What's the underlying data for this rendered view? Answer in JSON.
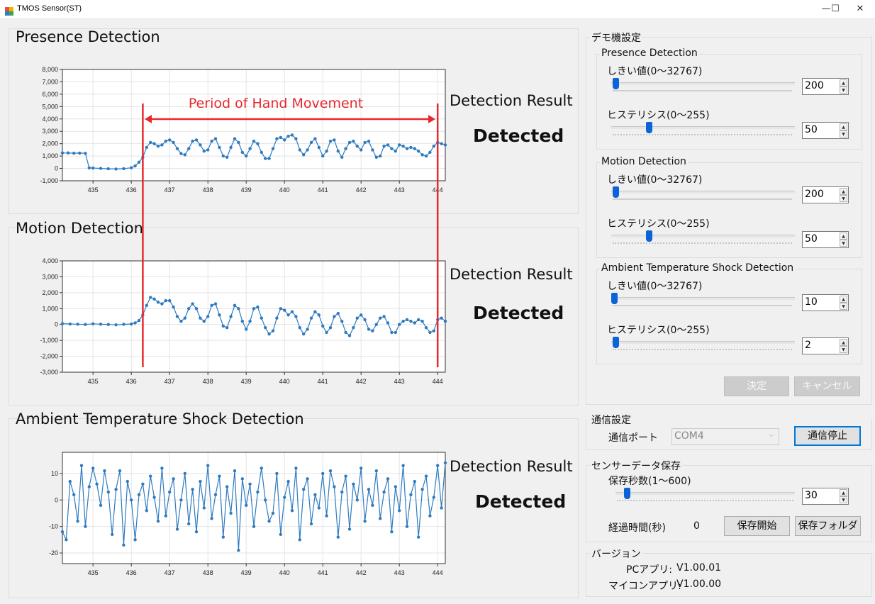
{
  "window": {
    "title": "TMOS Sensor(ST)",
    "minimize": "—",
    "maximize": "☐",
    "close": "✕"
  },
  "charts_ui": {
    "presence": {
      "title": "Presence Detection",
      "result_label": "Detection Result",
      "result_value": "Detected"
    },
    "motion": {
      "title": "Motion Detection",
      "result_label": "Detection Result",
      "result_value": "Detected"
    },
    "ambient": {
      "title": "Ambient Temperature Shock Detection",
      "result_label": "Detection Result",
      "result_value": "Detected"
    },
    "annotation": {
      "text": "Period of Hand Movement",
      "color": "#e8282d",
      "start_x": 436.3,
      "end_x": 444.0
    }
  },
  "chart_data": [
    {
      "type": "line",
      "title": "Presence Detection",
      "xlim": [
        434.2,
        444.2
      ],
      "ylim": [
        -1000,
        8000
      ],
      "x_ticks": [
        435,
        436,
        437,
        438,
        439,
        440,
        441,
        442,
        443,
        444
      ],
      "y_ticks": [
        -1000,
        0,
        1000,
        2000,
        3000,
        4000,
        5000,
        6000,
        7000,
        8000
      ],
      "y_tick_labels": [
        "-1,000",
        "0",
        "1,000",
        "2,000",
        "3,000",
        "4,000",
        "5,000",
        "6,000",
        "7,000",
        "8,000"
      ],
      "series_color": "#2e7bbf",
      "x": [
        434.2,
        434.35,
        434.5,
        434.65,
        434.8,
        434.9,
        435.0,
        435.2,
        435.4,
        435.6,
        435.8,
        436.0,
        436.1,
        436.2,
        436.3,
        436.4,
        436.5,
        436.6,
        436.7,
        436.8,
        436.9,
        437.0,
        437.1,
        437.2,
        437.3,
        437.4,
        437.5,
        437.6,
        437.7,
        437.8,
        437.9,
        438.0,
        438.1,
        438.2,
        438.3,
        438.4,
        438.5,
        438.6,
        438.7,
        438.8,
        438.9,
        439.0,
        439.1,
        439.2,
        439.3,
        439.4,
        439.5,
        439.6,
        439.7,
        439.8,
        439.9,
        440.0,
        440.1,
        440.2,
        440.3,
        440.4,
        440.5,
        440.6,
        440.7,
        440.8,
        440.9,
        441.0,
        441.1,
        441.2,
        441.3,
        441.4,
        441.5,
        441.6,
        441.7,
        441.8,
        441.9,
        442.0,
        442.1,
        442.2,
        442.3,
        442.4,
        442.5,
        442.6,
        442.7,
        442.8,
        442.9,
        443.0,
        443.1,
        443.2,
        443.3,
        443.4,
        443.5,
        443.6,
        443.7,
        443.8,
        443.9,
        444.0,
        444.1,
        444.2
      ],
      "y": [
        1250,
        1250,
        1230,
        1240,
        1220,
        40,
        30,
        0,
        -30,
        -50,
        -20,
        50,
        200,
        500,
        900,
        1700,
        2100,
        2000,
        1800,
        1900,
        2200,
        2300,
        2100,
        1600,
        1200,
        1100,
        1600,
        2200,
        2300,
        1900,
        1400,
        1500,
        2200,
        2400,
        1700,
        1000,
        900,
        1700,
        2400,
        2100,
        1300,
        1000,
        1600,
        2200,
        2000,
        1300,
        800,
        800,
        1600,
        2400,
        2500,
        2300,
        2600,
        2700,
        2400,
        1500,
        1100,
        1500,
        2100,
        2400,
        1700,
        1000,
        1400,
        2200,
        2300,
        1400,
        900,
        1600,
        2100,
        2200,
        1800,
        1500,
        2100,
        2200,
        1500,
        900,
        1000,
        1800,
        1900,
        1600,
        1400,
        1900,
        1800,
        1600,
        1700,
        1600,
        1400,
        1100,
        1000,
        1300,
        1800,
        2100,
        2000,
        1900
      ]
    },
    {
      "type": "line",
      "title": "Motion Detection",
      "xlim": [
        434.2,
        444.2
      ],
      "ylim": [
        -3000,
        4000
      ],
      "x_ticks": [
        435,
        436,
        437,
        438,
        439,
        440,
        441,
        442,
        443,
        444
      ],
      "y_ticks": [
        -3000,
        -2000,
        -1000,
        0,
        1000,
        2000,
        3000,
        4000
      ],
      "y_tick_labels": [
        "-3,000",
        "-2,000",
        "-1,000",
        "0",
        "1,000",
        "2,000",
        "3,000",
        "4,000"
      ],
      "series_color": "#2e7bbf",
      "x": [
        434.2,
        434.4,
        434.6,
        434.8,
        435.0,
        435.2,
        435.4,
        435.6,
        435.8,
        436.0,
        436.1,
        436.2,
        436.3,
        436.4,
        436.5,
        436.6,
        436.7,
        436.8,
        436.9,
        437.0,
        437.1,
        437.2,
        437.3,
        437.4,
        437.5,
        437.6,
        437.7,
        437.8,
        437.9,
        438.0,
        438.1,
        438.2,
        438.3,
        438.4,
        438.5,
        438.6,
        438.7,
        438.8,
        438.9,
        439.0,
        439.1,
        439.2,
        439.3,
        439.4,
        439.5,
        439.6,
        439.7,
        439.8,
        439.9,
        440.0,
        440.1,
        440.2,
        440.3,
        440.4,
        440.5,
        440.6,
        440.7,
        440.8,
        440.9,
        441.0,
        441.1,
        441.2,
        441.3,
        441.4,
        441.5,
        441.6,
        441.7,
        441.8,
        441.9,
        442.0,
        442.1,
        442.2,
        442.3,
        442.4,
        442.5,
        442.6,
        442.7,
        442.8,
        442.9,
        443.0,
        443.1,
        443.2,
        443.3,
        443.4,
        443.5,
        443.6,
        443.7,
        443.8,
        443.9,
        444.0,
        444.1,
        444.2
      ],
      "y": [
        50,
        30,
        20,
        0,
        40,
        20,
        0,
        -20,
        10,
        30,
        100,
        250,
        600,
        1200,
        1700,
        1600,
        1400,
        1300,
        1500,
        1500,
        1100,
        500,
        200,
        400,
        1000,
        1300,
        1000,
        400,
        200,
        500,
        1200,
        1300,
        600,
        -100,
        -200,
        500,
        1200,
        1000,
        200,
        -300,
        200,
        1000,
        1100,
        400,
        -200,
        -600,
        -400,
        400,
        1000,
        900,
        600,
        800,
        500,
        -200,
        -600,
        -300,
        400,
        800,
        600,
        -100,
        -500,
        -200,
        500,
        700,
        200,
        -500,
        -700,
        -200,
        400,
        600,
        300,
        -300,
        -400,
        0,
        400,
        500,
        100,
        -500,
        -500,
        0,
        200,
        300,
        200,
        100,
        300,
        200,
        -200,
        -500,
        -400,
        300,
        400,
        200
      ]
    },
    {
      "type": "line",
      "title": "Ambient Temperature Shock Detection",
      "xlim": [
        434.2,
        444.2
      ],
      "ylim": [
        -24,
        18
      ],
      "x_ticks": [
        435,
        436,
        437,
        438,
        439,
        440,
        441,
        442,
        443,
        444
      ],
      "y_ticks": [
        -20,
        -10,
        0,
        10
      ],
      "y_tick_labels": [
        "-20",
        "-10",
        "0",
        "10"
      ],
      "series_color": "#2e7bbf",
      "x": [
        434.2,
        434.3,
        434.4,
        434.5,
        434.6,
        434.7,
        434.8,
        434.9,
        435.0,
        435.1,
        435.2,
        435.3,
        435.4,
        435.5,
        435.6,
        435.7,
        435.8,
        435.9,
        436.0,
        436.1,
        436.2,
        436.3,
        436.4,
        436.5,
        436.6,
        436.7,
        436.8,
        436.9,
        437.0,
        437.1,
        437.2,
        437.3,
        437.4,
        437.5,
        437.6,
        437.7,
        437.8,
        437.9,
        438.0,
        438.1,
        438.2,
        438.3,
        438.4,
        438.5,
        438.6,
        438.7,
        438.8,
        438.9,
        439.0,
        439.1,
        439.2,
        439.3,
        439.4,
        439.5,
        439.6,
        439.7,
        439.8,
        439.9,
        440.0,
        440.1,
        440.2,
        440.3,
        440.4,
        440.5,
        440.6,
        440.7,
        440.8,
        440.9,
        441.0,
        441.1,
        441.2,
        441.3,
        441.4,
        441.5,
        441.6,
        441.7,
        441.8,
        441.9,
        442.0,
        442.1,
        442.2,
        442.3,
        442.4,
        442.5,
        442.6,
        442.7,
        442.8,
        442.9,
        443.0,
        443.1,
        443.2,
        443.3,
        443.4,
        443.5,
        443.6,
        443.7,
        443.8,
        443.9,
        444.0,
        444.1,
        444.2
      ],
      "y": [
        -12,
        -15,
        7,
        2,
        -8,
        13,
        -10,
        5,
        12,
        6,
        -2,
        11,
        3,
        -13,
        4,
        11,
        -17,
        7,
        0,
        -15,
        2,
        6,
        -4,
        9,
        1,
        -8,
        12,
        -6,
        3,
        8,
        -11,
        0,
        10,
        -9,
        4,
        -12,
        7,
        -3,
        13,
        -7,
        2,
        9,
        -14,
        5,
        -5,
        11,
        -19,
        8,
        -2,
        6,
        -10,
        3,
        12,
        0,
        -8,
        -5,
        10,
        -13,
        1,
        7,
        -4,
        12,
        -15,
        4,
        8,
        -9,
        2,
        -3,
        10,
        -6,
        11,
        5,
        -14,
        3,
        9,
        -11,
        6,
        0,
        12,
        -8,
        4,
        -2,
        11,
        -7,
        3,
        8,
        -12,
        5,
        -4,
        13,
        -10,
        2,
        7,
        -14,
        4,
        9,
        -6,
        1,
        13,
        -3,
        14
      ]
    }
  ],
  "settings": {
    "group_title": "デモ機設定",
    "presence": {
      "title": "Presence Detection",
      "threshold_label": "しきい値(0～32767)",
      "threshold_value": "200",
      "threshold_fraction": 0.006,
      "hysteresis_label": "ヒステリシス(0～255)",
      "hysteresis_value": "50",
      "hysteresis_fraction": 0.196
    },
    "motion": {
      "title": "Motion Detection",
      "threshold_label": "しきい値(0～32767)",
      "threshold_value": "200",
      "threshold_fraction": 0.006,
      "hysteresis_label": "ヒステリシス(0～255)",
      "hysteresis_value": "50",
      "hysteresis_fraction": 0.196
    },
    "ambient": {
      "title": "Ambient Temperature Shock Detection",
      "threshold_label": "しきい値(0～32767)",
      "threshold_value": "10",
      "threshold_fraction": 0.0003,
      "hysteresis_label": "ヒステリシス(0～255)",
      "hysteresis_value": "2",
      "hysteresis_fraction": 0.008
    },
    "ok_button": "決定",
    "cancel_button": "キャンセル"
  },
  "comm": {
    "group_title": "通信設定",
    "port_label": "通信ポート",
    "port_value": "COM4",
    "stop_button": "通信停止"
  },
  "save": {
    "group_title": "センサーデータ保存",
    "seconds_label": "保存秒数(1～600)",
    "seconds_value": "30",
    "seconds_fraction": 0.048,
    "elapsed_label": "経過時間(秒)",
    "elapsed_value": "0",
    "start_button": "保存開始",
    "folder_button": "保存フォルダ"
  },
  "version": {
    "group_title": "バージョン",
    "pc_label": "PCアプリ:",
    "pc_value": "V1.00.01",
    "mcu_label": "マイコンアプリ:",
    "mcu_value": "V1.00.00"
  },
  "colors": {
    "accent": "#0a64d8",
    "series": "#2e7bbf",
    "annotation": "#e8282d",
    "window_bg": "#f0f0f0"
  },
  "icons": {
    "app": "app-icon",
    "minimize": "minimize-icon",
    "maximize": "maximize-icon",
    "close": "close-icon",
    "spin_up": "spin-up-icon",
    "spin_down": "spin-down-icon",
    "dropdown": "chevron-down-icon"
  }
}
